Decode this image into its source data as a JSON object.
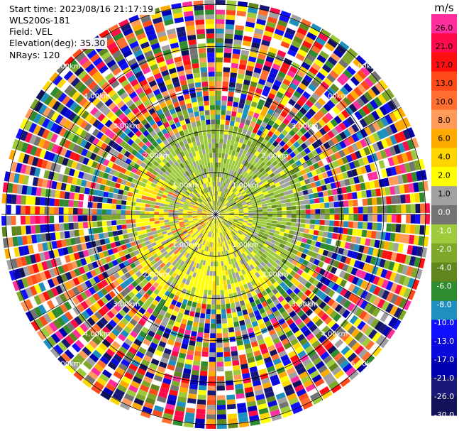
{
  "info": {
    "start_time": "Start time: 2023/08/16 21:17:19",
    "instrument": "WLS200s-181",
    "field": "Field: VEL",
    "elevation": "Elevation(deg): 35.30",
    "nrays": "NRays: 120"
  },
  "chart_data": {
    "type": "heatmap",
    "projection": "polar (PPI)",
    "field": "VEL",
    "units": "m/s",
    "nrays": 120,
    "range_ring_labels": [
      "1.00km",
      "2.00km",
      "3.00km",
      "4.00km",
      "5.00km"
    ],
    "grid": true,
    "colorbar": {
      "title": "m/s",
      "tick_labels": [
        "26.0",
        "21.0",
        "17.0",
        "13.0",
        "10.0",
        "8.0",
        "6.0",
        "4.0",
        "2.0",
        "1.0",
        "0.0",
        "-1.0",
        "-2.0",
        "-4.0",
        "-6.0",
        "-8.0",
        "-10.0",
        "-13.0",
        "-17.0",
        "-21.0",
        "-26.0",
        "-30.0"
      ],
      "colors": [
        "#ff2e9e",
        "#ff0a4a",
        "#ff1010",
        "#ff4a1a",
        "#ff6e2e",
        "#ff9a5a",
        "#ffaa00",
        "#ffd700",
        "#ffff00",
        "#a0a0a0",
        "#737373",
        "#9dcb3b",
        "#7ea82a",
        "#60861e",
        "#2e8b2e",
        "#1e90c0",
        "#1010ff",
        "#0a0adc",
        "#0000b0",
        "#181878",
        "#12125a"
      ]
    }
  }
}
